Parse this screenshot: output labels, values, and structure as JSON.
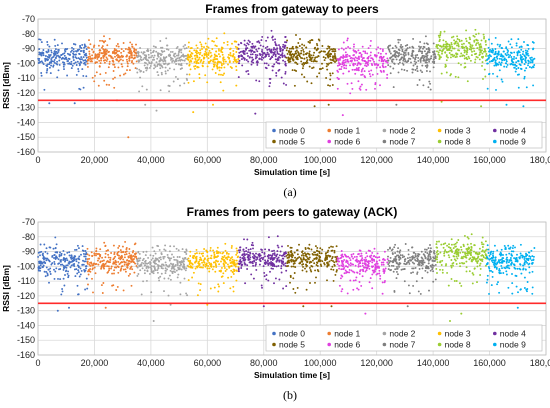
{
  "chart_data": [
    {
      "type": "scatter",
      "title": "Frames from gateway to peers",
      "xlabel": "Simulation time [s]",
      "ylabel": "RSSI [dBm]",
      "sublabel": "(a)",
      "xlim": [
        0,
        180000
      ],
      "ylim": [
        -160,
        -70
      ],
      "xticks": [
        0,
        20000,
        40000,
        60000,
        80000,
        100000,
        120000,
        140000,
        160000,
        180000
      ],
      "xtick_labels": [
        "0",
        "20,000",
        "40,000",
        "60,000",
        "80,000",
        "100,000",
        "120,000",
        "140,000",
        "160,000",
        "180,000"
      ],
      "yticks": [
        -70,
        -80,
        -90,
        -100,
        -110,
        -120,
        -130,
        -140,
        -150,
        -160
      ],
      "ytick_labels": [
        "-70",
        "-80",
        "-90",
        "-100",
        "-110",
        "-120",
        "-130",
        "-140",
        "-150",
        "-160"
      ],
      "grid": true,
      "legend_position": "bottom-right",
      "threshold": {
        "y": -125,
        "color": "#ff2a2a"
      },
      "series": [
        {
          "name": "node 0",
          "color": "#4472c4",
          "x_range": [
            0,
            17500
          ],
          "y_center": -96,
          "y_spread": 6,
          "outliers": [
            [
              4000,
              -127
            ],
            [
              13000,
              -127
            ]
          ]
        },
        {
          "name": "node 1",
          "color": "#ed7d31",
          "x_range": [
            17500,
            35000
          ],
          "y_center": -95,
          "y_spread": 6,
          "outliers": [
            [
              32000,
              -150
            ],
            [
              28000,
              -125
            ]
          ]
        },
        {
          "name": "node 2",
          "color": "#a5a5a5",
          "x_range": [
            35000,
            53000
          ],
          "y_center": -97,
          "y_spread": 6,
          "outliers": [
            [
              42000,
              -132
            ],
            [
              38000,
              -128
            ]
          ]
        },
        {
          "name": "node 3",
          "color": "#ffc000",
          "x_range": [
            53000,
            71000
          ],
          "y_center": -96,
          "y_spread": 6,
          "outliers": [
            [
              55000,
              -133
            ],
            [
              62000,
              -128
            ]
          ]
        },
        {
          "name": "node 4",
          "color": "#7030a0",
          "x_range": [
            71000,
            88000
          ],
          "y_center": -93,
          "y_spread": 6,
          "outliers": [
            [
              77000,
              -134
            ]
          ]
        },
        {
          "name": "node 5",
          "color": "#806000",
          "x_range": [
            88000,
            106000
          ],
          "y_center": -95,
          "y_spread": 6,
          "outliers": [
            [
              98000,
              -129
            ],
            [
              103000,
              -128
            ]
          ]
        },
        {
          "name": "node 6",
          "color": "#e040e0",
          "x_range": [
            106000,
            124000
          ],
          "y_center": -98,
          "y_spread": 6,
          "outliers": [
            [
              108000,
              -135
            ]
          ]
        },
        {
          "name": "node 7",
          "color": "#7f7f7f",
          "x_range": [
            124000,
            141000
          ],
          "y_center": -95,
          "y_spread": 6,
          "outliers": [
            [
              127000,
              -128
            ]
          ]
        },
        {
          "name": "node 8",
          "color": "#9acd32",
          "x_range": [
            141000,
            159000
          ],
          "y_center": -90,
          "y_spread": 6,
          "outliers": [
            [
              143000,
              -126
            ],
            [
              157000,
              -129
            ]
          ]
        },
        {
          "name": "node 9",
          "color": "#00b0f0",
          "x_range": [
            159000,
            176000
          ],
          "y_center": -96,
          "y_spread": 6,
          "outliers": [
            [
              166000,
              -128
            ],
            [
              172000,
              -129
            ]
          ]
        }
      ]
    },
    {
      "type": "scatter",
      "title": "Frames from peers to gateway (ACK)",
      "xlabel": "Simulation time [s]",
      "ylabel": "RSSI [dBm]",
      "sublabel": "(b)",
      "xlim": [
        0,
        180000
      ],
      "ylim": [
        -160,
        -70
      ],
      "xticks": [
        0,
        20000,
        40000,
        60000,
        80000,
        100000,
        120000,
        140000,
        160000,
        180000
      ],
      "xtick_labels": [
        "0",
        "20,000",
        "40,000",
        "60,000",
        "80,000",
        "100,000",
        "120,000",
        "140,000",
        "160,000",
        "180,000"
      ],
      "yticks": [
        -70,
        -80,
        -90,
        -100,
        -110,
        -120,
        -130,
        -140,
        -150,
        -160
      ],
      "ytick_labels": [
        "-70",
        "-80",
        "-90",
        "-100",
        "-110",
        "-120",
        "-130",
        "-140",
        "-150",
        "-160"
      ],
      "grid": true,
      "legend_position": "bottom-right",
      "threshold": {
        "y": -125,
        "color": "#ff2a2a"
      },
      "series": [
        {
          "name": "node 0",
          "color": "#4472c4",
          "x_range": [
            0,
            17500
          ],
          "y_center": -97,
          "y_spread": 6,
          "outliers": [
            [
              7000,
              -130
            ],
            [
              11000,
              -128
            ]
          ]
        },
        {
          "name": "node 1",
          "color": "#ed7d31",
          "x_range": [
            17500,
            35000
          ],
          "y_center": -96,
          "y_spread": 6,
          "outliers": [
            [
              24000,
              -128
            ]
          ]
        },
        {
          "name": "node 2",
          "color": "#a5a5a5",
          "x_range": [
            35000,
            53000
          ],
          "y_center": -98,
          "y_spread": 6,
          "outliers": [
            [
              41000,
              -137
            ],
            [
              47000,
              -126
            ]
          ]
        },
        {
          "name": "node 3",
          "color": "#ffc000",
          "x_range": [
            53000,
            71000
          ],
          "y_center": -97,
          "y_spread": 6,
          "outliers": [
            [
              60000,
              -126
            ]
          ]
        },
        {
          "name": "node 4",
          "color": "#7030a0",
          "x_range": [
            71000,
            88000
          ],
          "y_center": -94,
          "y_spread": 6,
          "outliers": [
            [
              80000,
              -127
            ]
          ]
        },
        {
          "name": "node 5",
          "color": "#806000",
          "x_range": [
            88000,
            106000
          ],
          "y_center": -96,
          "y_spread": 6,
          "outliers": [
            [
              94000,
              -127
            ],
            [
              104000,
              -127
            ]
          ]
        },
        {
          "name": "node 6",
          "color": "#e040e0",
          "x_range": [
            106000,
            124000
          ],
          "y_center": -99,
          "y_spread": 6,
          "outliers": [
            [
              116000,
              -132
            ]
          ]
        },
        {
          "name": "node 7",
          "color": "#7f7f7f",
          "x_range": [
            124000,
            141000
          ],
          "y_center": -96,
          "y_spread": 6,
          "outliers": [
            [
              131000,
              -127
            ]
          ]
        },
        {
          "name": "node 8",
          "color": "#9acd32",
          "x_range": [
            141000,
            159000
          ],
          "y_center": -92,
          "y_spread": 6,
          "outliers": [
            [
              146000,
              -137
            ],
            [
              150000,
              -132
            ]
          ]
        },
        {
          "name": "node 9",
          "color": "#00b0f0",
          "x_range": [
            159000,
            176000
          ],
          "y_center": -97,
          "y_spread": 6,
          "outliers": [
            [
              170000,
              -128
            ]
          ]
        }
      ]
    }
  ]
}
